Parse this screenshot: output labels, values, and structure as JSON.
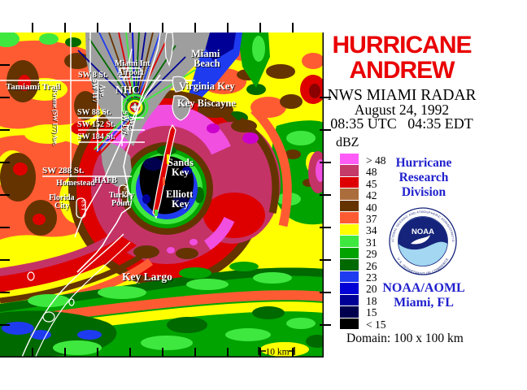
{
  "header": {
    "title_line1": "HURRICANE",
    "title_line2": "ANDREW",
    "station": "NWS MIAMI RADAR",
    "date": "August 24, 1992",
    "time": "08:35 UTC   04:35 EDT"
  },
  "colors": {
    "title_red": "#e90000",
    "text_blue": "#2121cd",
    "clutter_gray": "#9e9e9e",
    "eyewall_magenta": "#f04fe0",
    "eyewall_crimson": "#c43366"
  },
  "legend": {
    "units": "dBZ",
    "items": [
      {
        "label": "> 48",
        "color": "#ff5cf7"
      },
      {
        "label": "48",
        "color": "#c43a69"
      },
      {
        "label": "45",
        "color": "#de0000"
      },
      {
        "label": "42",
        "color": "#ac6d3d"
      },
      {
        "label": "40",
        "color": "#653300"
      },
      {
        "label": "37",
        "color": "#ff5b33"
      },
      {
        "label": "34",
        "color": "#ffff00"
      },
      {
        "label": "31",
        "color": "#3fe83f"
      },
      {
        "label": "29",
        "color": "#00a300"
      },
      {
        "label": "26",
        "color": "#006900"
      },
      {
        "label": "23",
        "color": "#1f3bf0"
      },
      {
        "label": "20",
        "color": "#0000d6"
      },
      {
        "label": "18",
        "color": "#000096"
      },
      {
        "label": "15",
        "color": "#00004f"
      },
      {
        "label": "< 15",
        "color": "#000000"
      }
    ]
  },
  "org": {
    "line1": "Hurricane",
    "line2": "Research",
    "line3": "Division",
    "noaa_text": "NOAA",
    "noaa_ring_top": "NATIONAL OCEANIC AND ATMOSPHERIC ADMINISTRATION",
    "noaa_ring_bottom": "U.S. DEPARTMENT OF COMMERCE",
    "affil1": "NOAA/AOML",
    "affil2": "Miami, FL"
  },
  "footer": {
    "domain": "Domain: 100 x 100 km"
  },
  "radar": {
    "scale_label": "10 km",
    "shield": "US 1",
    "labels": {
      "tamiami": "Tamiami Trail",
      "sw8": "SW 8 St.",
      "miami_int1": "Miami Int",
      "miami_int2": "Airport",
      "nhc": "NHC",
      "sw117": "SW 117",
      "ave1": "Ave.",
      "sw107": "SW 107",
      "ave2": "Ave.",
      "sw88": "SW 88 St.",
      "sw152": "SW 152 St.",
      "sw184": "SW 184 St.",
      "sw288": "SW 288 St.",
      "homestead": "Homestead",
      "florida1": "Florida",
      "florida2": "City",
      "krome": "Krome (SW 177) Ave.",
      "hafb": "HAFB",
      "turkey1": "Turkey",
      "turkey2": "Point",
      "beach1": "Miami",
      "beach2": "Beach",
      "virginia": "Virginia Key",
      "biscayne": "Key Biscayne",
      "sands1": "Sands",
      "sands2": "Key",
      "elliott1": "Elliott",
      "elliott2": "Key",
      "largo": "Key Largo"
    }
  }
}
